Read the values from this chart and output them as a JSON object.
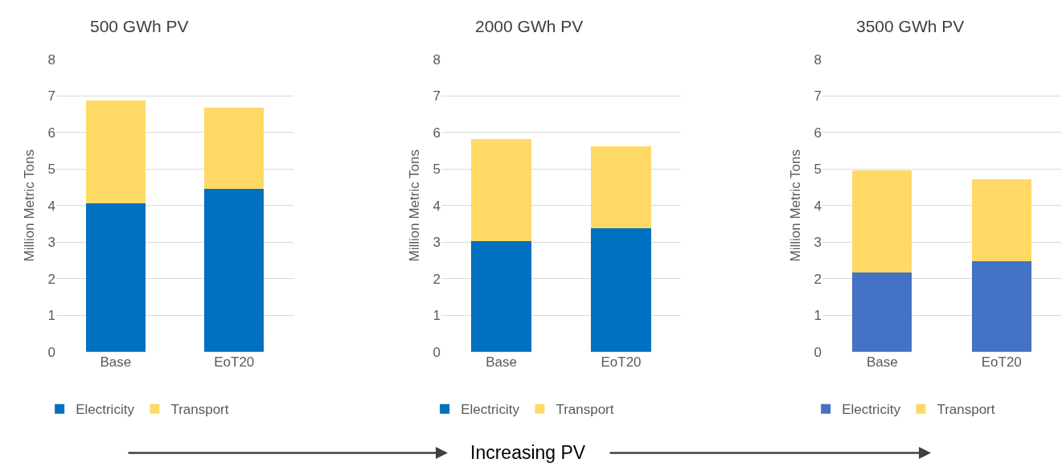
{
  "chart_data": [
    {
      "type": "bar",
      "title": "500 GWh PV",
      "ylabel": "Million Metric Tons",
      "categories": [
        "Base",
        "EoT20"
      ],
      "stacked": true,
      "ylim": [
        0,
        8
      ],
      "yticks": [
        0,
        1,
        2,
        3,
        4,
        5,
        6,
        7,
        8
      ],
      "grid": "y",
      "legend": "bottom",
      "series": [
        {
          "name": "Electricity",
          "color": "#0070c0",
          "values": [
            4.07,
            4.45
          ]
        },
        {
          "name": "Transport",
          "color": "#ffd966",
          "values": [
            2.8,
            2.23
          ]
        }
      ]
    },
    {
      "type": "bar",
      "title": "2000 GWh PV",
      "ylabel": "Million Metric Tons",
      "categories": [
        "Base",
        "EoT20"
      ],
      "stacked": true,
      "ylim": [
        0,
        8
      ],
      "yticks": [
        0,
        1,
        2,
        3,
        4,
        5,
        6,
        7,
        8
      ],
      "grid": "y",
      "legend": "bottom",
      "series": [
        {
          "name": "Electricity",
          "color": "#0070c0",
          "values": [
            3.03,
            3.37
          ]
        },
        {
          "name": "Transport",
          "color": "#ffd966",
          "values": [
            2.79,
            2.25
          ]
        }
      ],
      "annotations": [
        "Increasing PV"
      ]
    },
    {
      "type": "bar",
      "title": "3500 GWh PV",
      "ylabel": "Million Metric Tons",
      "categories": [
        "Base",
        "EoT20"
      ],
      "stacked": true,
      "ylim": [
        0,
        8
      ],
      "yticks": [
        0,
        1,
        2,
        3,
        4,
        5,
        6,
        7,
        8
      ],
      "grid": "y",
      "legend": "bottom",
      "series": [
        {
          "name": "Electricity",
          "color": "#4472c4",
          "values": [
            2.17,
            2.47
          ]
        },
        {
          "name": "Transport",
          "color": "#ffd966",
          "values": [
            2.8,
            2.25
          ]
        }
      ]
    }
  ]
}
